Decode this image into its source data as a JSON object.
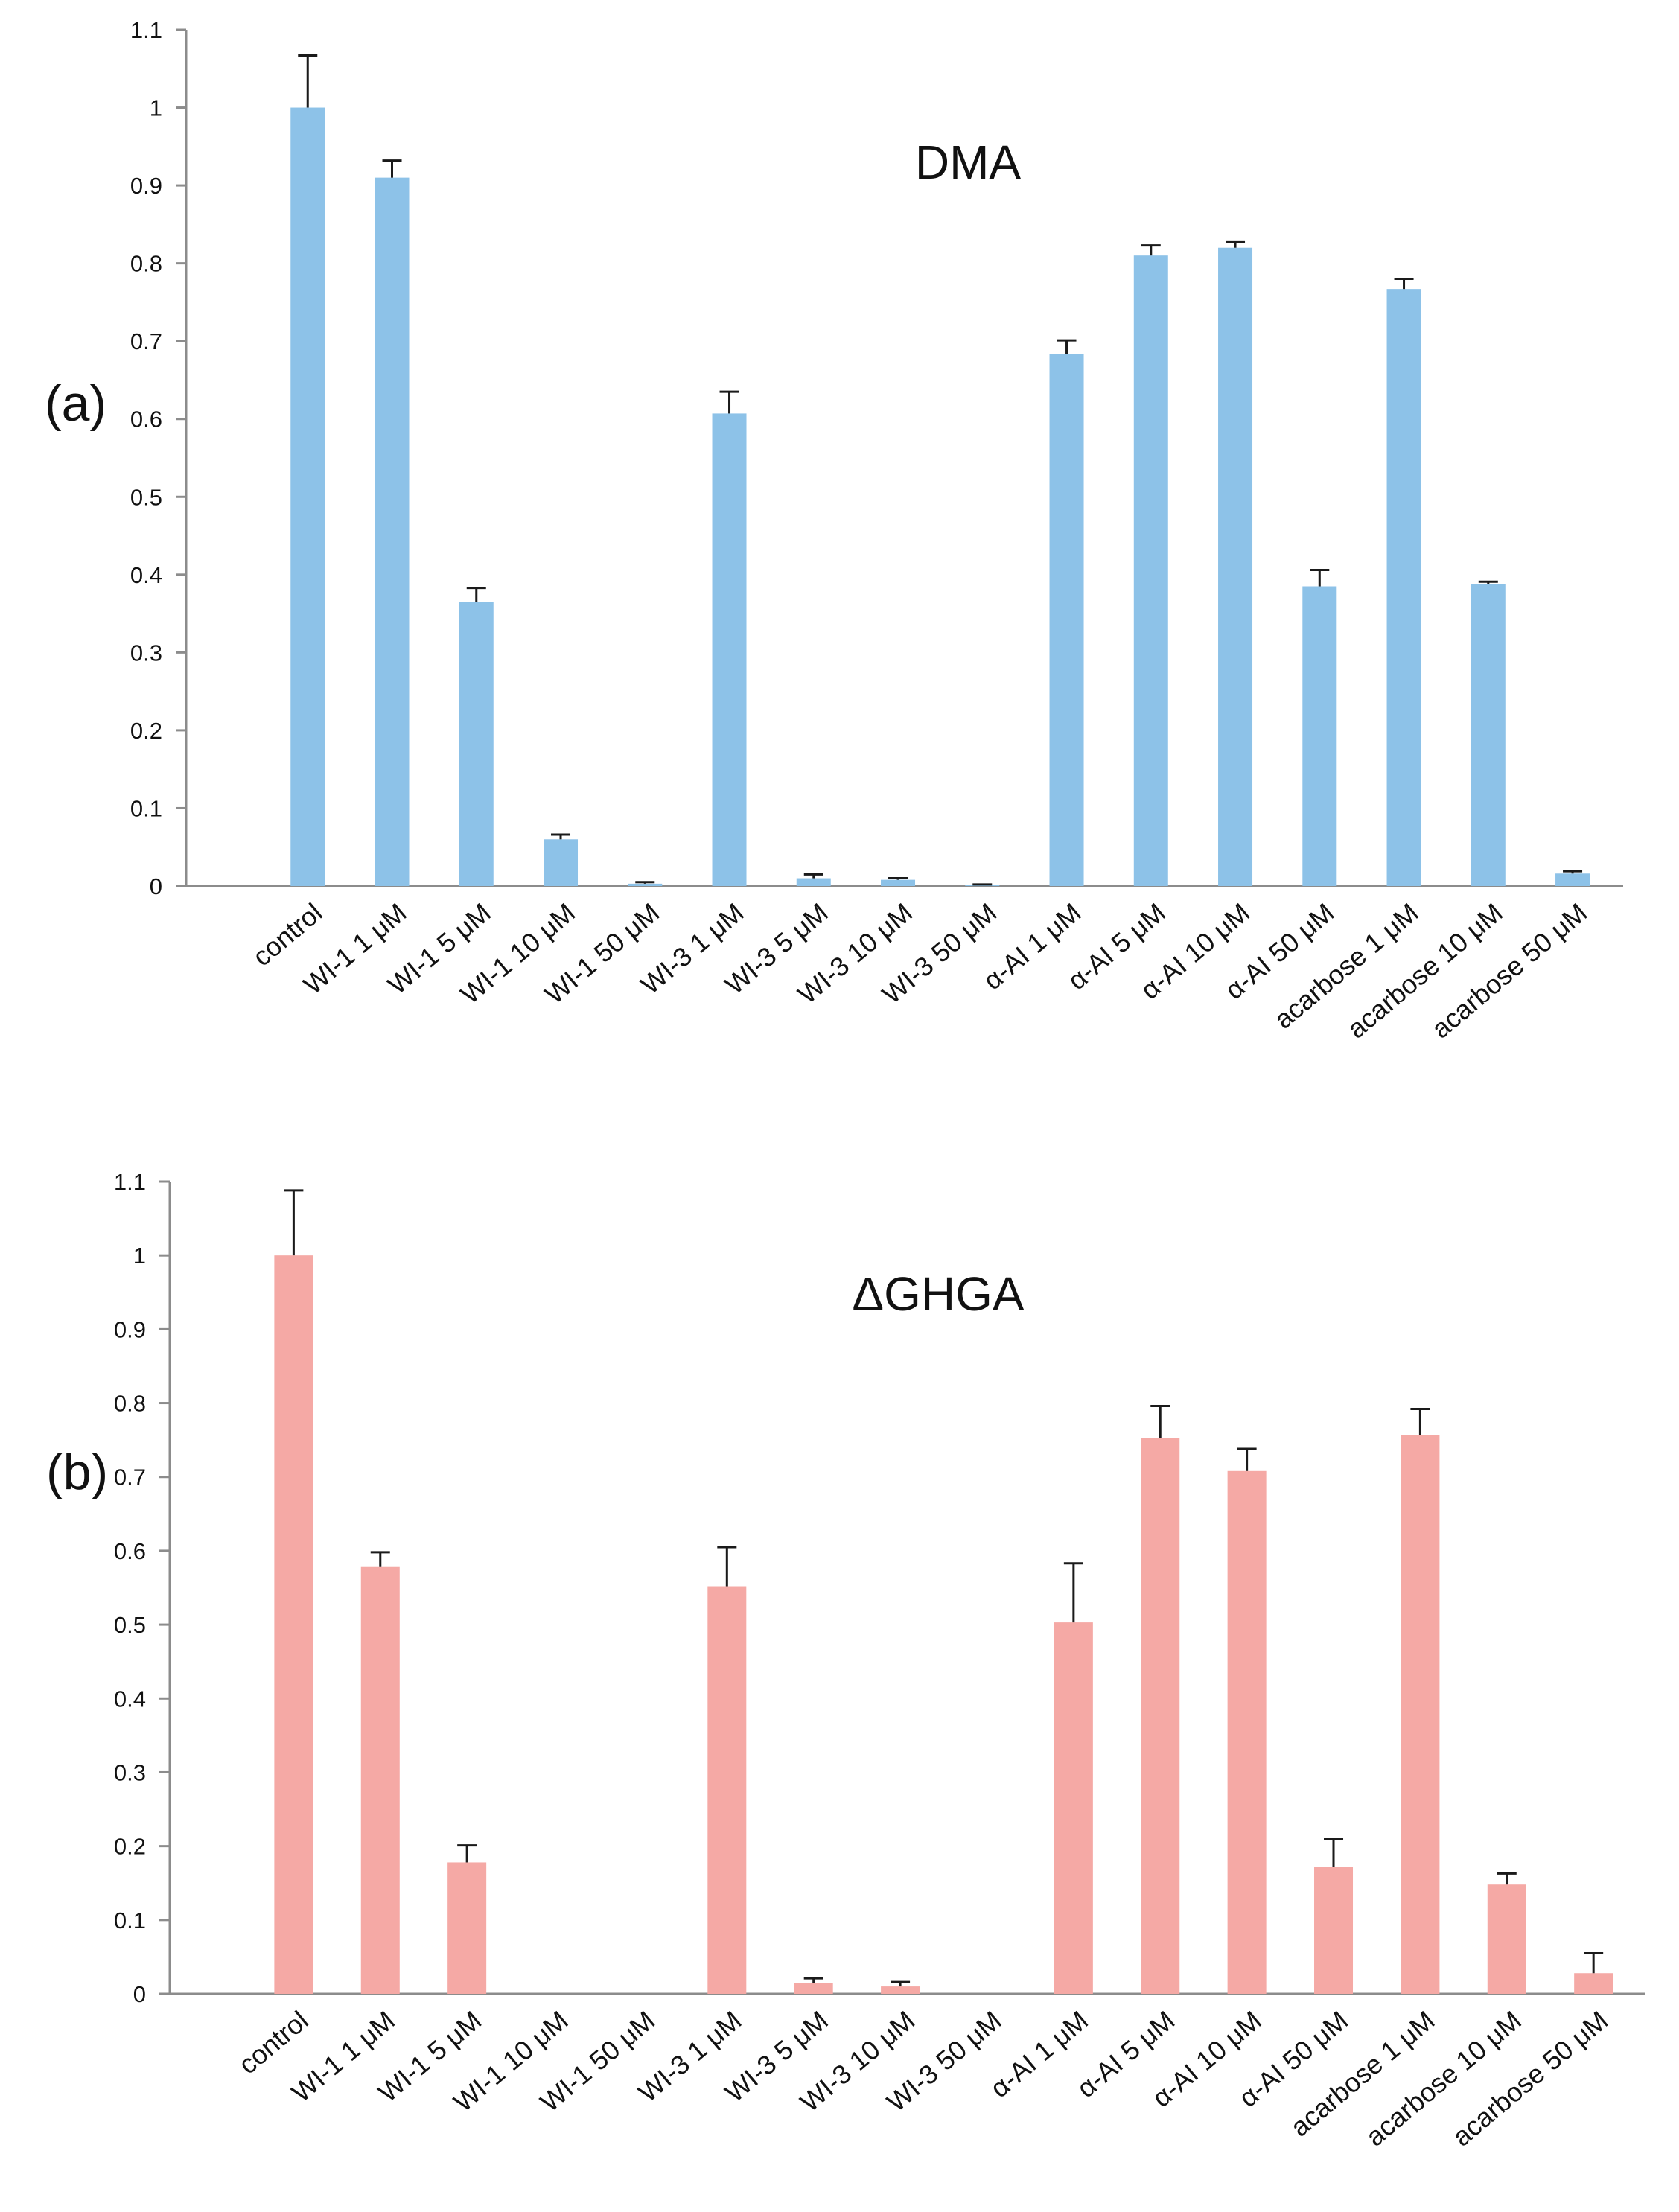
{
  "panels": [
    {
      "panel_label": "(a)",
      "chart_data": {
        "type": "bar",
        "title": "DMA",
        "xlabel": "",
        "ylabel": "",
        "ylim": [
          0,
          1.1
        ],
        "yticks": [
          "0",
          "0.1",
          "0.2",
          "0.3",
          "0.4",
          "0.5",
          "0.6",
          "0.7",
          "0.8",
          "0.9",
          "1",
          "1.1"
        ],
        "grid": false,
        "legend": "none",
        "bar_color": "#8DC2E8",
        "categories": [
          "control",
          "WI-1 1 μM",
          "WI-1 5 μM",
          "WI-1 10 μM",
          "WI-1 50 μM",
          "WI-3 1 μM",
          "WI-3 5 μM",
          "WI-3 10 μM",
          "WI-3 50 μM",
          "α-AI  1 μM",
          "α-AI  5 μM",
          "α-AI  10 μM",
          "α-AI  50 μM",
          "acarbose 1 μM",
          "acarbose 10 μM",
          "acarbose 50 μM"
        ],
        "values": [
          1.0,
          0.91,
          0.365,
          0.06,
          0.003,
          0.607,
          0.01,
          0.008,
          0.001,
          0.683,
          0.81,
          0.82,
          0.385,
          0.767,
          0.388,
          0.016
        ],
        "errors": [
          0.067,
          0.022,
          0.018,
          0.006,
          0.002,
          0.028,
          0.005,
          0.002,
          0.001,
          0.018,
          0.013,
          0.007,
          0.021,
          0.013,
          0.003,
          0.003
        ]
      }
    },
    {
      "panel_label": "(b)",
      "chart_data": {
        "type": "bar",
        "title": "ΔGHGA",
        "xlabel": "",
        "ylabel": "",
        "ylim": [
          0,
          1.1
        ],
        "yticks": [
          "0",
          "0.1",
          "0.2",
          "0.3",
          "0.4",
          "0.5",
          "0.6",
          "0.7",
          "0.8",
          "0.9",
          "1",
          "1.1"
        ],
        "grid": false,
        "legend": "none",
        "bar_color": "#F5A9A5",
        "categories": [
          "control",
          "WI-1 1 μM",
          "WI-1 5 μM",
          "WI-1 10 μM",
          "WI-1 50 μM",
          "WI-3 1 μM",
          "WI-3 5 μM",
          "WI-3 10 μM",
          "WI-3 50 μM",
          "α-AI  1 μM",
          "α-AI  5 μM",
          "α-AI  10 μM",
          "α-AI  50 μM",
          "acarbose 1 μM",
          "acarbose 10 μM",
          "acarbose 50 μM"
        ],
        "values": [
          1.0,
          0.578,
          0.178,
          0,
          0,
          0.552,
          0.015,
          0.01,
          0,
          0.503,
          0.753,
          0.708,
          0.172,
          0.757,
          0.148,
          0.028
        ],
        "errors": [
          0.088,
          0.02,
          0.023,
          0,
          0,
          0.053,
          0.006,
          0.006,
          0,
          0.08,
          0.043,
          0.03,
          0.038,
          0.035,
          0.015,
          0.027
        ]
      }
    }
  ]
}
